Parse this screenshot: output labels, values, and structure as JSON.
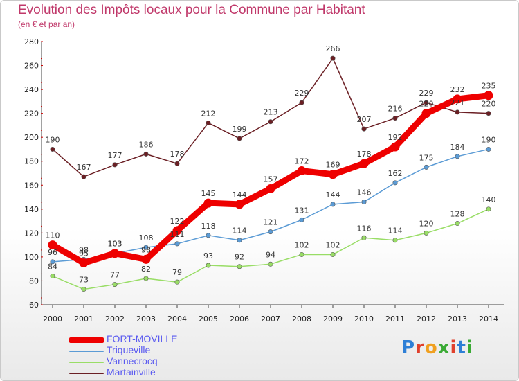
{
  "header": {
    "title": "Evolution des Impôts locaux pour la Commune par Habitant",
    "subtitle": "(en € et par an)"
  },
  "logo": {
    "text": "Proxiti",
    "letter_colors": [
      "#2e7fd6",
      "#e0402c",
      "#f0a020",
      "#3aaa35",
      "#e0402c",
      "#2e7fd6",
      "#3aaa35"
    ]
  },
  "chart_data": {
    "type": "line",
    "title": "Evolution des Impôts locaux pour la Commune par Habitant",
    "subtitle": "(en € et par an)",
    "xlabel": "",
    "ylabel": "",
    "x": [
      "2000",
      "2001",
      "2002",
      "2003",
      "2004",
      "2005",
      "2006",
      "2007",
      "2008",
      "2009",
      "2010",
      "2011",
      "2012",
      "2013",
      "2014"
    ],
    "ylim": [
      60,
      280
    ],
    "yticks": [
      60,
      80,
      100,
      120,
      140,
      160,
      180,
      200,
      220,
      240,
      260,
      280
    ],
    "grid": false,
    "legend_position": "bottom-left",
    "series": [
      {
        "name": "Martainville",
        "color": "#6b1f24",
        "values": [
          190,
          167,
          177,
          186,
          178,
          212,
          199,
          213,
          229,
          266,
          207,
          216,
          229,
          221,
          220
        ]
      },
      {
        "name": "Vannecrocq",
        "color": "#99dd66",
        "values": [
          84,
          73,
          77,
          82,
          79,
          93,
          92,
          94,
          102,
          102,
          116,
          114,
          120,
          128,
          140
        ]
      },
      {
        "name": "Triqueville",
        "color": "#5b9bd5",
        "values": [
          96,
          98,
          103,
          108,
          111,
          118,
          114,
          121,
          131,
          144,
          146,
          162,
          175,
          184,
          190
        ]
      },
      {
        "name": "FORT-MOVILLE",
        "color": "#ee0000",
        "values": [
          110,
          95,
          103,
          98,
          122,
          145,
          144,
          157,
          172,
          169,
          178,
          192,
          220,
          232,
          235
        ]
      }
    ]
  }
}
